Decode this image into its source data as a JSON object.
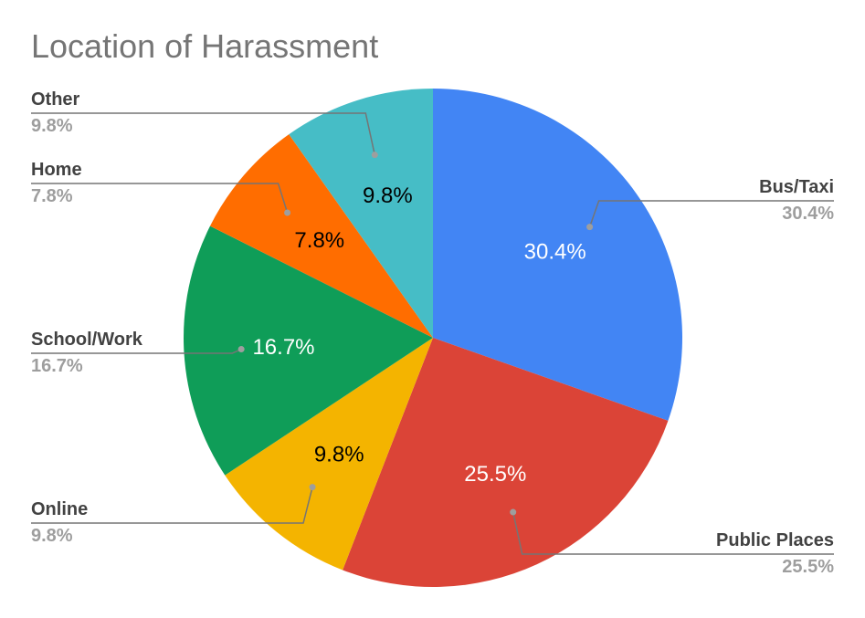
{
  "chart_data": {
    "type": "pie",
    "title": "Location of Harassment",
    "slices": [
      {
        "label": "Bus/Taxi",
        "value": 30.4,
        "display": "30.4%",
        "color": "#4285f4",
        "inner_text_color": "#ffffff"
      },
      {
        "label": "Public Places",
        "value": 25.5,
        "display": "25.5%",
        "color": "#db4437",
        "inner_text_color": "#ffffff"
      },
      {
        "label": "Online",
        "value": 9.8,
        "display": "9.8%",
        "color": "#f4b400",
        "inner_text_color": "#000000"
      },
      {
        "label": "School/Work",
        "value": 16.7,
        "display": "16.7%",
        "color": "#0f9d58",
        "inner_text_color": "#ffffff"
      },
      {
        "label": "Home",
        "value": 7.8,
        "display": "7.8%",
        "color": "#ff6d00",
        "inner_text_color": "#000000"
      },
      {
        "label": "Other",
        "value": 9.8,
        "display": "9.8%",
        "color": "#46bdc6",
        "inner_text_color": "#000000"
      }
    ],
    "start_angle": "12 o'clock",
    "direction": "clockwise",
    "legend": "callout labels"
  }
}
